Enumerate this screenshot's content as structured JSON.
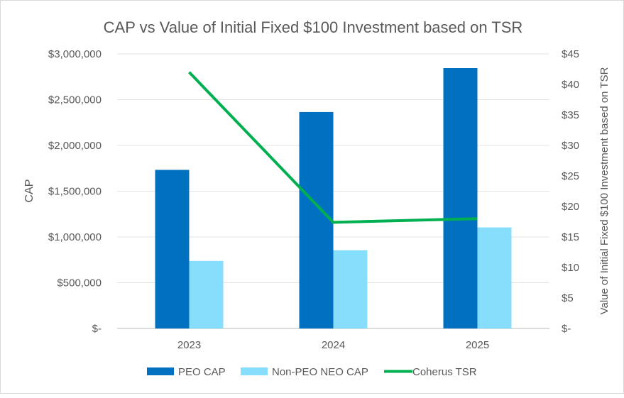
{
  "chart_data": {
    "type": "bar",
    "title": "CAP vs Value of Initial Fixed $100 Investment based on TSR",
    "categories": [
      "2023",
      "2024",
      "2025"
    ],
    "ylabel": "CAP",
    "y2label": "Value of Initial Fixed $100 Investment based on TSR",
    "ylim": [
      0,
      3000000
    ],
    "y2lim": [
      0,
      45
    ],
    "yticks": [
      "$-",
      "$500,000",
      "$1,000,000",
      "$1,500,000",
      "$2,000,000",
      "$2,500,000",
      "$3,000,000"
    ],
    "y2ticks": [
      "$-",
      "$5",
      "$10",
      "$15",
      "$20",
      "$25",
      "$30",
      "$35",
      "$40",
      "$45"
    ],
    "grid": true,
    "legend_position": "bottom",
    "series": [
      {
        "name": "PEO CAP",
        "type": "bar",
        "axis": "left",
        "color": "#0070C0",
        "values": [
          1733000,
          2365000,
          2845000
        ]
      },
      {
        "name": "Non-PEO NEO CAP",
        "type": "bar",
        "axis": "left",
        "color": "#87DEFC",
        "values": [
          738000,
          855000,
          1104000
        ]
      },
      {
        "name": "Coherus TSR",
        "type": "line",
        "axis": "right",
        "color": "#00B050",
        "values": [
          42.0,
          17.4,
          18.0
        ]
      }
    ]
  }
}
